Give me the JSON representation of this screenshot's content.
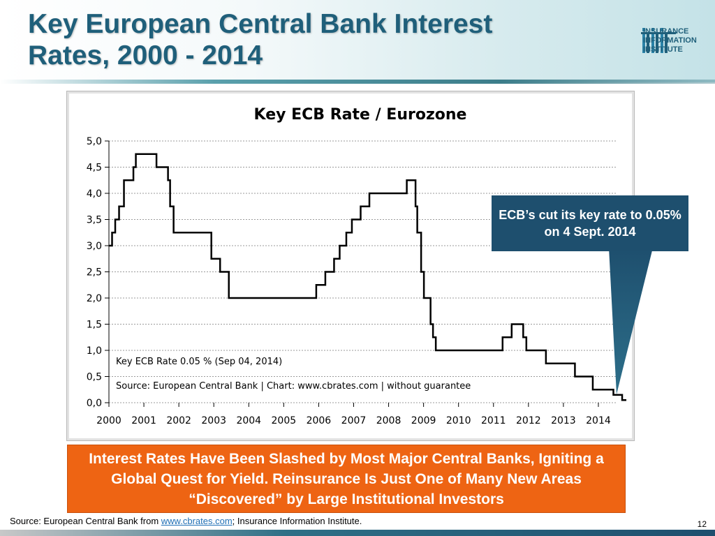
{
  "slide": {
    "title_line1": "Key European Central Bank Interest",
    "title_line2": "Rates, 2000 - 2014",
    "logo_line1": "INSURANCE",
    "logo_line2": "INFORMATION",
    "logo_line3": "INSTITUTE",
    "callout": "ECB’s cut its key rate to 0.05% on 4 Sept. 2014",
    "takeaway": "Interest Rates Have Been Slashed by Most Major Central Banks, Igniting a Global Quest for Yield.  Reinsurance Is Just One of Many New Areas “Discovered” by Large Institutional Investors",
    "source_prefix": "Source: European Central Bank from ",
    "source_link": "www.cbrates.com",
    "source_suffix": "; Insurance Information Institute.",
    "page_number": "12",
    "colors": {
      "title": "#1f5f7a",
      "callout_bg": "#1e4f6e",
      "takeaway_bg": "#ee6413",
      "line": "#000000"
    }
  },
  "chart_data": {
    "type": "line",
    "title": "Key ECB Rate / Eurozone",
    "xlabel": "",
    "ylabel": "",
    "xlim": [
      2000,
      2014.9
    ],
    "ylim": [
      0,
      5
    ],
    "grid": true,
    "step": true,
    "x_ticks": [
      "2000",
      "2001",
      "2002",
      "2003",
      "2004",
      "2005",
      "2006",
      "2007",
      "2008",
      "2009",
      "2010",
      "2011",
      "2012",
      "2013",
      "2014"
    ],
    "y_ticks": [
      "0,0",
      "0,5",
      "1,0",
      "1,5",
      "2,0",
      "2,5",
      "3,0",
      "3,5",
      "4,0",
      "4,5",
      "5,0"
    ],
    "annotations": [
      "Key ECB Rate 0.05 % (Sep 04, 2014)",
      "Source: European Central Bank | Chart: www.cbrates.com | without guarantee"
    ],
    "series": [
      {
        "x": [
          2000.0,
          2000.09,
          2000.18,
          2000.29,
          2000.43,
          2000.7,
          2000.77,
          2001.36,
          2001.69,
          2001.75,
          2001.85,
          2002.93,
          2003.18,
          2003.43,
          2005.93,
          2006.19,
          2006.44,
          2006.6,
          2006.79,
          2006.95,
          2007.2,
          2007.45,
          2008.52,
          2008.77,
          2008.82,
          2008.93,
          2009.01,
          2009.2,
          2009.27,
          2009.35,
          2011.26,
          2011.52,
          2011.85,
          2011.94,
          2012.5,
          2013.33,
          2013.84,
          2014.43,
          2014.68,
          2014.8
        ],
        "y": [
          3.0,
          3.25,
          3.5,
          3.75,
          4.25,
          4.5,
          4.75,
          4.5,
          4.25,
          3.75,
          3.25,
          2.75,
          2.5,
          2.0,
          2.25,
          2.5,
          2.75,
          3.0,
          3.25,
          3.5,
          3.75,
          4.0,
          4.25,
          3.75,
          3.25,
          2.5,
          2.0,
          1.5,
          1.25,
          1.0,
          1.25,
          1.5,
          1.25,
          1.0,
          0.75,
          0.5,
          0.25,
          0.15,
          0.05,
          0.05
        ]
      }
    ]
  }
}
